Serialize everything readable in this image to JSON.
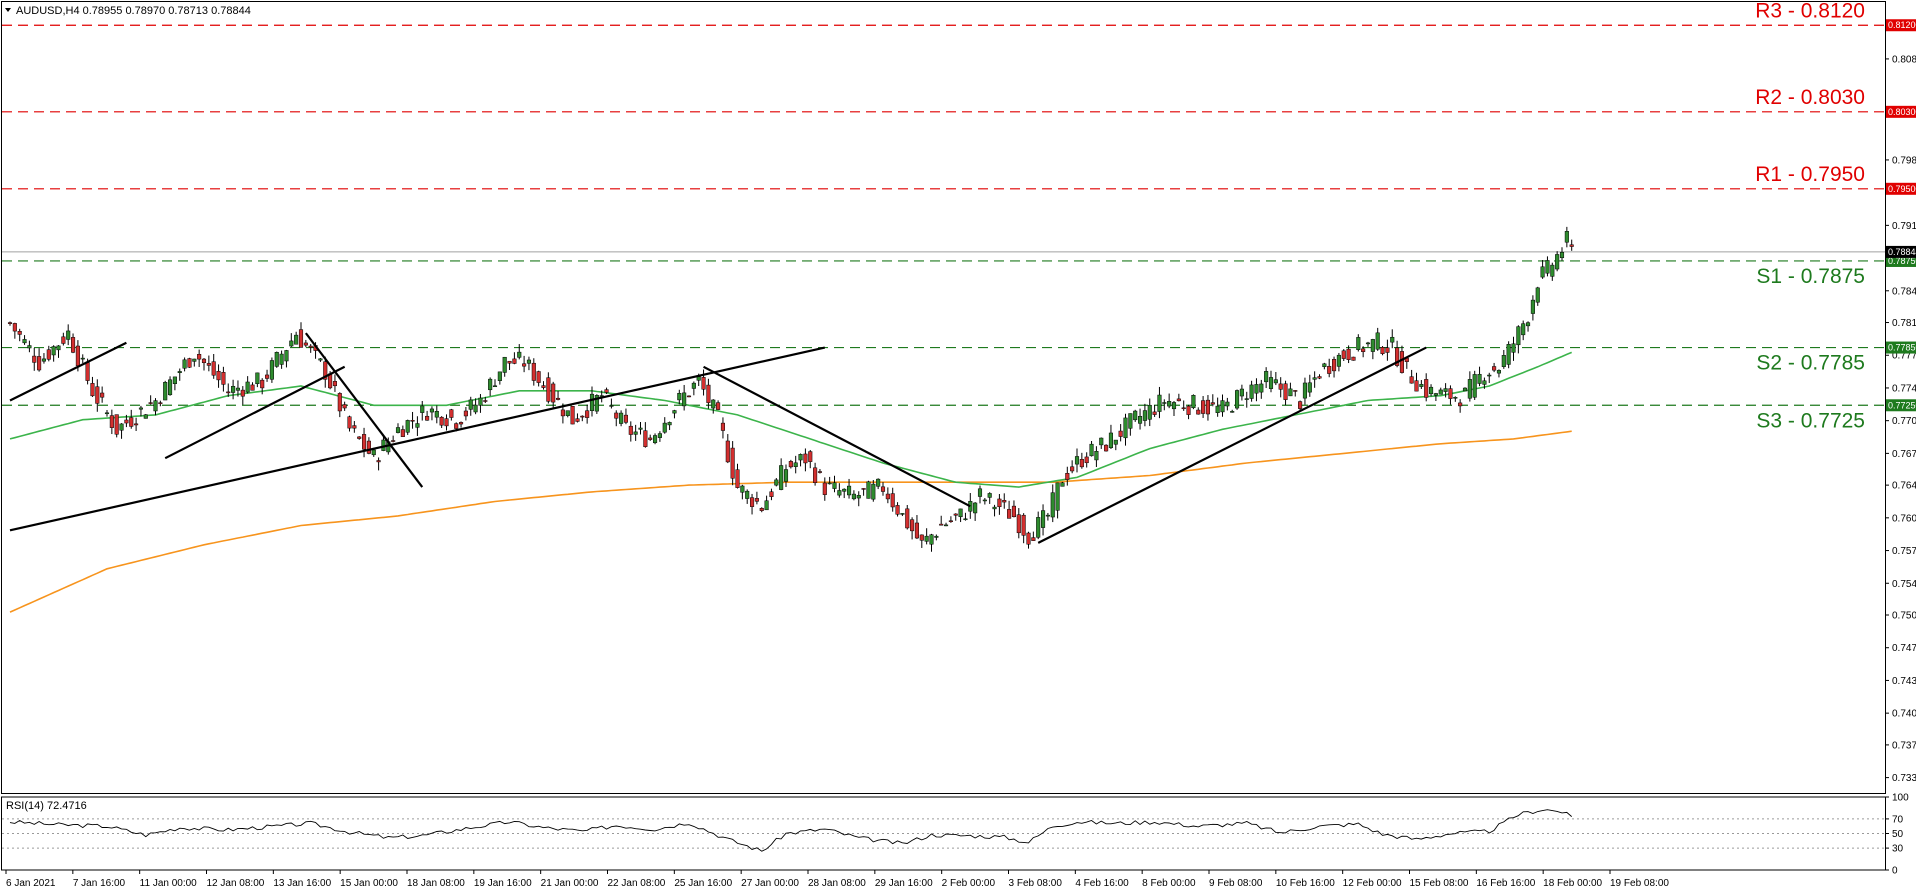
{
  "header": {
    "symbol": "AUDUSD,H4",
    "ohlc": "0.78955 0.78970 0.78713 0.78844"
  },
  "chart_data": {
    "type": "candlestick",
    "symbol": "AUDUSD",
    "timeframe": "H4",
    "ylim": [
      0.7322,
      0.814
    ],
    "price_ticks": [
      "0.81200",
      "0.80850",
      "0.80300",
      "0.79800",
      "0.79120",
      "0.78440",
      "0.78110",
      "0.77770",
      "0.77430",
      "0.77090",
      "0.76750",
      "0.76420",
      "0.76080",
      "0.75740",
      "0.75400",
      "0.75070",
      "0.74730",
      "0.74390",
      "0.74050",
      "0.73720",
      "0.73380"
    ],
    "x_labels": [
      "6 Jan 2021",
      "7 Jan 16:00",
      "11 Jan 00:00",
      "12 Jan 08:00",
      "13 Jan 16:00",
      "15 Jan 00:00",
      "18 Jan 08:00",
      "19 Jan 16:00",
      "21 Jan 00:00",
      "22 Jan 08:00",
      "25 Jan 16:00",
      "27 Jan 00:00",
      "28 Jan 08:00",
      "29 Jan 16:00",
      "2 Feb 00:00",
      "3 Feb 08:00",
      "4 Feb 16:00",
      "8 Feb 00:00",
      "9 Feb 08:00",
      "10 Feb 16:00",
      "12 Feb 00:00",
      "15 Feb 08:00",
      "16 Feb 16:00",
      "18 Feb 00:00",
      "19 Feb 08:00"
    ],
    "current_price": 0.78844,
    "current_price_label": "0.78844",
    "levels": [
      {
        "name": "R3",
        "label": "R3 - 0.8120",
        "tag": "0.81200",
        "value": 0.812,
        "kind": "resistance",
        "color": "#e00000"
      },
      {
        "name": "R2",
        "label": "R2 - 0.8030",
        "tag": "0.80300",
        "value": 0.803,
        "kind": "resistance",
        "color": "#e00000"
      },
      {
        "name": "R1",
        "label": "R1 - 0.7950",
        "tag": "0.79500",
        "value": 0.795,
        "kind": "resistance",
        "color": "#e00000"
      },
      {
        "name": "S1",
        "label": "S1 - 0.7875",
        "tag": "0.78750",
        "value": 0.7875,
        "kind": "support",
        "color": "#1e7a1e"
      },
      {
        "name": "S2",
        "label": "S2 - 0.7785",
        "tag": "0.77850",
        "value": 0.7785,
        "kind": "support",
        "color": "#1e7a1e"
      },
      {
        "name": "S3",
        "label": "S3 - 0.7725",
        "tag": "0.77250",
        "value": 0.7725,
        "kind": "support",
        "color": "#1e7a1e"
      }
    ],
    "candle_close_anchors": [
      [
        0,
        0.781
      ],
      [
        6,
        0.777
      ],
      [
        12,
        0.78
      ],
      [
        17,
        0.774
      ],
      [
        22,
        0.77
      ],
      [
        30,
        0.773
      ],
      [
        38,
        0.778
      ],
      [
        45,
        0.774
      ],
      [
        52,
        0.775
      ],
      [
        59,
        0.78
      ],
      [
        65,
        0.776
      ],
      [
        70,
        0.77
      ],
      [
        75,
        0.767
      ],
      [
        80,
        0.77
      ],
      [
        86,
        0.772
      ],
      [
        92,
        0.771
      ],
      [
        97,
        0.773
      ],
      [
        102,
        0.777
      ],
      [
        106,
        0.777
      ],
      [
        111,
        0.774
      ],
      [
        116,
        0.771
      ],
      [
        122,
        0.7735
      ],
      [
        127,
        0.77
      ],
      [
        132,
        0.769
      ],
      [
        138,
        0.773
      ],
      [
        142,
        0.775
      ],
      [
        146,
        0.771
      ],
      [
        150,
        0.764
      ],
      [
        155,
        0.762
      ],
      [
        160,
        0.766
      ],
      [
        164,
        0.767
      ],
      [
        168,
        0.764
      ],
      [
        174,
        0.763
      ],
      [
        180,
        0.764
      ],
      [
        184,
        0.761
      ],
      [
        188,
        0.758
      ],
      [
        192,
        0.76
      ],
      [
        196,
        0.761
      ],
      [
        200,
        0.763
      ],
      [
        204,
        0.762
      ],
      [
        207,
        0.761
      ],
      [
        210,
        0.759
      ],
      [
        214,
        0.761
      ],
      [
        217,
        0.765
      ],
      [
        221,
        0.767
      ],
      [
        226,
        0.7685
      ],
      [
        232,
        0.771
      ],
      [
        238,
        0.773
      ],
      [
        244,
        0.7725
      ],
      [
        250,
        0.772
      ],
      [
        255,
        0.774
      ],
      [
        259,
        0.775
      ],
      [
        263,
        0.774
      ],
      [
        266,
        0.773
      ],
      [
        270,
        0.776
      ],
      [
        274,
        0.7775
      ],
      [
        278,
        0.7785
      ],
      [
        282,
        0.779
      ],
      [
        285,
        0.7785
      ],
      [
        288,
        0.776
      ],
      [
        292,
        0.774
      ],
      [
        296,
        0.7735
      ],
      [
        300,
        0.7735
      ],
      [
        304,
        0.776
      ],
      [
        307,
        0.7765
      ],
      [
        310,
        0.779
      ],
      [
        313,
        0.782
      ],
      [
        315,
        0.7855
      ],
      [
        317,
        0.7865
      ],
      [
        319,
        0.788
      ],
      [
        321,
        0.7895
      ],
      [
        322,
        0.7884
      ]
    ],
    "candle_count": 323,
    "ma_fast": {
      "name": "MA green",
      "color": "#3cb44b",
      "points": [
        [
          0,
          0.769
        ],
        [
          15,
          0.771
        ],
        [
          30,
          0.7715
        ],
        [
          45,
          0.7735
        ],
        [
          60,
          0.7745
        ],
        [
          75,
          0.7725
        ],
        [
          90,
          0.7725
        ],
        [
          105,
          0.774
        ],
        [
          120,
          0.774
        ],
        [
          135,
          0.773
        ],
        [
          150,
          0.7715
        ],
        [
          165,
          0.769
        ],
        [
          180,
          0.7665
        ],
        [
          195,
          0.7645
        ],
        [
          208,
          0.764
        ],
        [
          220,
          0.765
        ],
        [
          235,
          0.768
        ],
        [
          250,
          0.77
        ],
        [
          265,
          0.7715
        ],
        [
          280,
          0.773
        ],
        [
          295,
          0.7735
        ],
        [
          305,
          0.7745
        ],
        [
          315,
          0.7765
        ],
        [
          322,
          0.778
        ]
      ]
    },
    "ma_slow": {
      "name": "MA orange",
      "color": "#f7941d",
      "points": [
        [
          0,
          0.751
        ],
        [
          20,
          0.7555
        ],
        [
          40,
          0.758
        ],
        [
          60,
          0.76
        ],
        [
          80,
          0.761
        ],
        [
          100,
          0.7625
        ],
        [
          120,
          0.7635
        ],
        [
          140,
          0.7642
        ],
        [
          160,
          0.7645
        ],
        [
          180,
          0.7645
        ],
        [
          200,
          0.7645
        ],
        [
          215,
          0.7645
        ],
        [
          235,
          0.7652
        ],
        [
          255,
          0.7665
        ],
        [
          275,
          0.7675
        ],
        [
          295,
          0.7685
        ],
        [
          310,
          0.769
        ],
        [
          322,
          0.7698
        ]
      ]
    },
    "trendlines": [
      [
        [
          0,
          0.773
        ],
        [
          24,
          0.779
        ]
      ],
      [
        [
          32,
          0.767
        ],
        [
          69,
          0.7765
        ]
      ],
      [
        [
          61,
          0.78
        ],
        [
          85,
          0.764
        ]
      ],
      [
        [
          0,
          0.7595
        ],
        [
          168,
          0.7785
        ]
      ],
      [
        [
          143,
          0.7765
        ],
        [
          198,
          0.762
        ]
      ],
      [
        [
          212,
          0.7582
        ],
        [
          292,
          0.7785
        ]
      ]
    ],
    "rsi": {
      "label": "RSI(14) 72.4716",
      "value": 72.4716,
      "ylim": [
        0,
        100
      ],
      "ticks": [
        "100",
        "70",
        "50",
        "30",
        "0"
      ],
      "levels": [
        70,
        50,
        30
      ],
      "points": [
        [
          0,
          66
        ],
        [
          10,
          62
        ],
        [
          20,
          60
        ],
        [
          28,
          48
        ],
        [
          35,
          58
        ],
        [
          45,
          55
        ],
        [
          55,
          60
        ],
        [
          62,
          64
        ],
        [
          70,
          52
        ],
        [
          78,
          44
        ],
        [
          85,
          47
        ],
        [
          95,
          58
        ],
        [
          103,
          66
        ],
        [
          110,
          58
        ],
        [
          118,
          53
        ],
        [
          125,
          61
        ],
        [
          133,
          56
        ],
        [
          140,
          65
        ],
        [
          148,
          42
        ],
        [
          155,
          26
        ],
        [
          160,
          50
        ],
        [
          168,
          56
        ],
        [
          175,
          44
        ],
        [
          184,
          36
        ],
        [
          190,
          48
        ],
        [
          198,
          47
        ],
        [
          205,
          45
        ],
        [
          210,
          38
        ],
        [
          215,
          60
        ],
        [
          220,
          66
        ],
        [
          228,
          64
        ],
        [
          236,
          66
        ],
        [
          245,
          60
        ],
        [
          255,
          64
        ],
        [
          262,
          51
        ],
        [
          270,
          60
        ],
        [
          278,
          63
        ],
        [
          283,
          49
        ],
        [
          290,
          42
        ],
        [
          297,
          50
        ],
        [
          305,
          53
        ],
        [
          311,
          76
        ],
        [
          316,
          83
        ],
        [
          320,
          80
        ],
        [
          322,
          72
        ]
      ]
    }
  }
}
